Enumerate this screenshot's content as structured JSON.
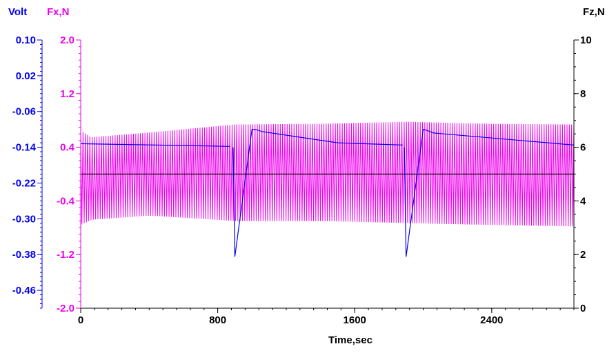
{
  "chart_data": {
    "type": "line",
    "title": "",
    "xlabel": "Time,sec",
    "x_range": [
      0,
      2880
    ],
    "x_ticks": [
      0,
      800,
      1600,
      2400
    ],
    "x_tick_labels": [
      "0",
      "800",
      "1600",
      "2400"
    ],
    "axes": {
      "volt": {
        "label": "Volt",
        "color": "#0000ee",
        "range": [
          -0.5,
          0.1
        ],
        "ticks": [
          0.1,
          0.02,
          -0.06,
          -0.14,
          -0.22,
          -0.3,
          -0.38,
          -0.46
        ],
        "tick_labels": [
          "0.10",
          "0.02",
          "-0.06",
          "-0.14",
          "-0.22",
          "-0.30",
          "-0.38",
          "-0.46"
        ]
      },
      "fx": {
        "label": "Fx,N",
        "color": "#ee00ee",
        "range": [
          -2.0,
          2.0
        ],
        "ticks": [
          2.0,
          1.2,
          0.4,
          -0.4,
          -1.2,
          -2.0
        ],
        "tick_labels": [
          "2.0",
          "1.2",
          "0.4",
          "-0.4",
          "-1.2",
          "-2.0"
        ]
      },
      "fz": {
        "label": "Fz,N",
        "color": "#000000",
        "range": [
          0,
          10
        ],
        "ticks": [
          10,
          8,
          6,
          4,
          2,
          0
        ],
        "tick_labels": [
          "10",
          "8",
          "6",
          "4",
          "2",
          "0"
        ]
      }
    },
    "series": [
      {
        "name": "Fx",
        "axis": "fx",
        "color": "#ee00ee",
        "kind": "oscillation",
        "description_points": {
          "x": [
            0,
            60,
            400,
            900,
            1400,
            1900,
            2400,
            2880
          ],
          "upper": [
            0.65,
            0.55,
            0.62,
            0.74,
            0.75,
            0.78,
            0.75,
            0.74
          ],
          "lower": [
            -0.75,
            -0.68,
            -0.62,
            -0.7,
            -0.7,
            -0.73,
            -0.76,
            -0.78
          ]
        },
        "cycles": 215
      },
      {
        "name": "Volt",
        "axis": "volt",
        "color": "#0000ee",
        "x": [
          0,
          870,
          870,
          890,
          900,
          1000,
          1020,
          1060,
          1500,
          1880,
          1880,
          1890,
          1900,
          2000,
          2020,
          2060,
          2880
        ],
        "y": [
          -0.132,
          -0.138,
          null,
          -0.14,
          -0.385,
          -0.1,
          -0.1,
          -0.105,
          -0.13,
          -0.135,
          null,
          -0.14,
          -0.385,
          -0.1,
          -0.102,
          -0.108,
          -0.135
        ]
      },
      {
        "name": "Fz",
        "axis": "fz",
        "color": "#000000",
        "x": [
          0,
          2880
        ],
        "y": [
          5.0,
          5.0
        ]
      }
    ]
  }
}
